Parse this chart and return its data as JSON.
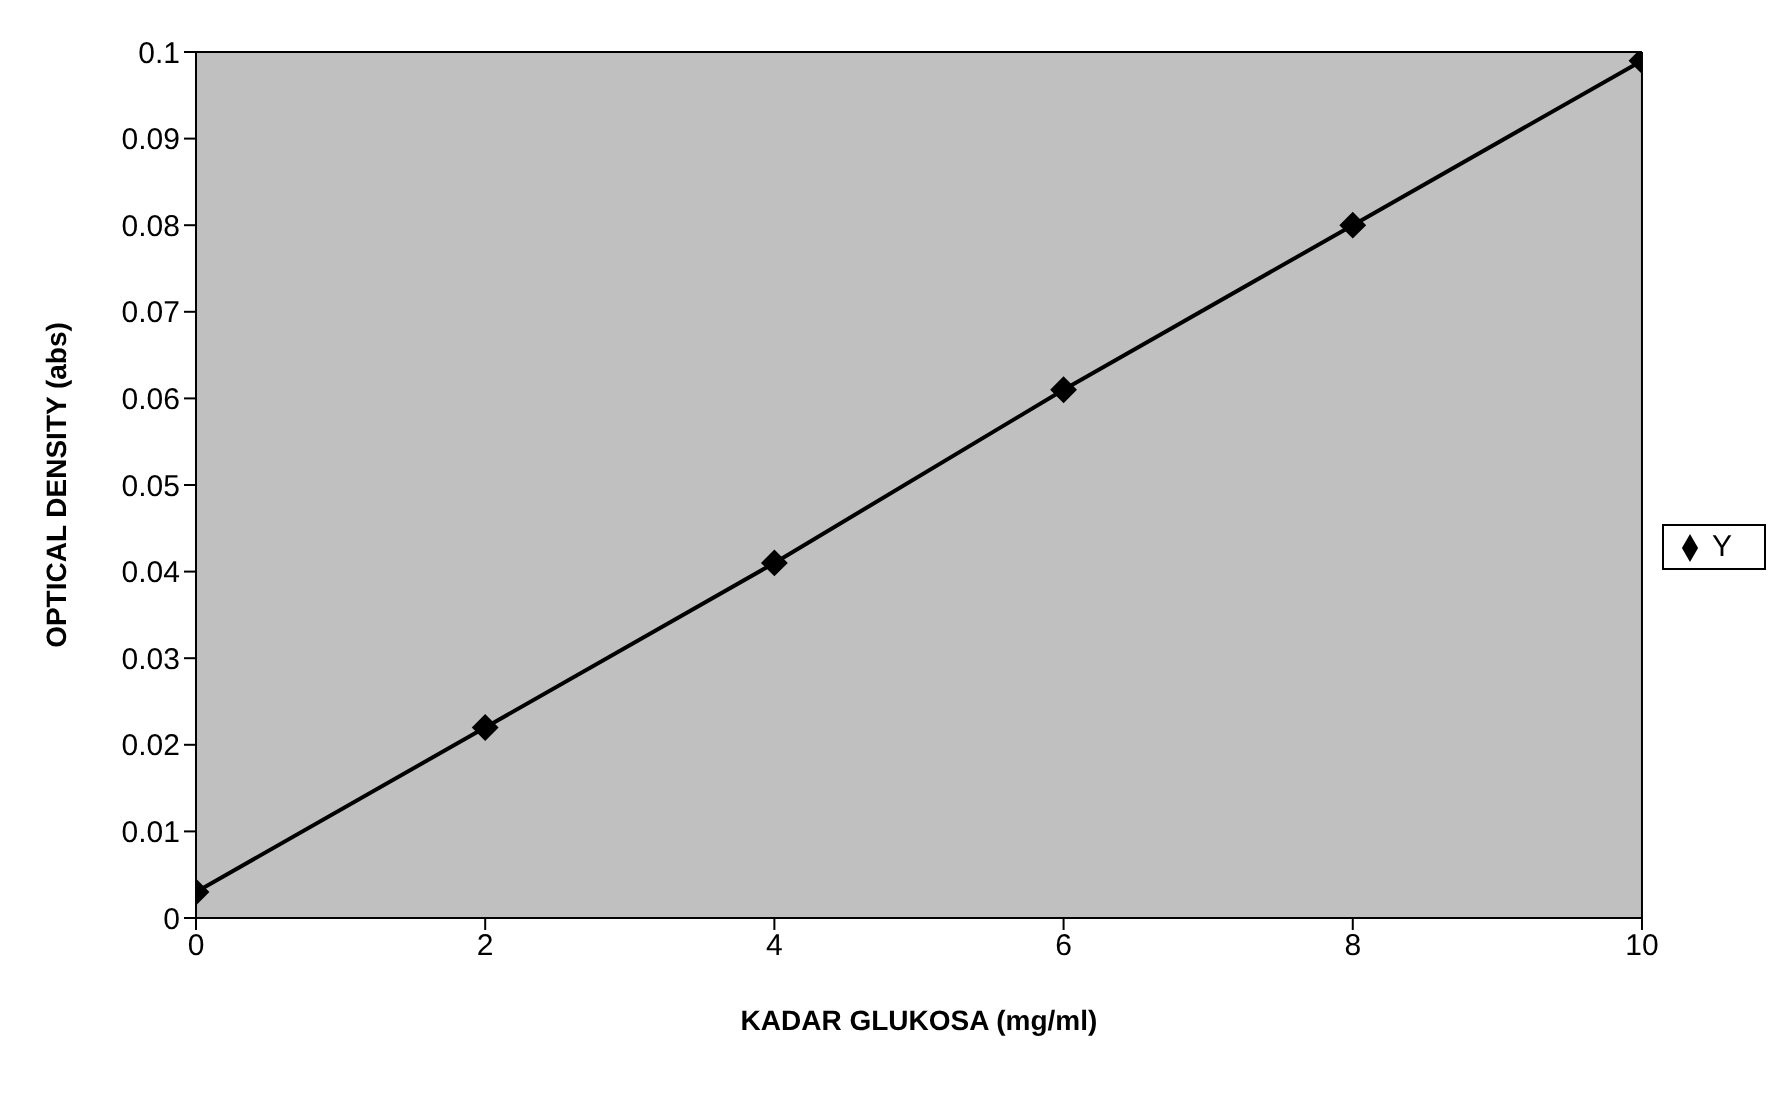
{
  "chart_data": {
    "type": "line",
    "xlabel": "KADAR GLUKOSA (mg/ml)",
    "ylabel": "OPTICAL DENSITY (abs)",
    "x": [
      0,
      2,
      4,
      6,
      8,
      10
    ],
    "series": [
      {
        "name": "Y",
        "color": "#000000",
        "values": [
          0.003,
          0.022,
          0.041,
          0.061,
          0.08,
          0.099
        ]
      }
    ],
    "xlim": [
      0,
      10
    ],
    "xticks": [
      0,
      2,
      4,
      6,
      8,
      10
    ],
    "ylim": [
      0,
      0.1
    ],
    "yticks": [
      0,
      0.01,
      0.02,
      0.03,
      0.04,
      0.05,
      0.06,
      0.07,
      0.08,
      0.09,
      0.1
    ],
    "grid": false,
    "legend": "right",
    "marker": "diamond",
    "line_style": "solid"
  }
}
